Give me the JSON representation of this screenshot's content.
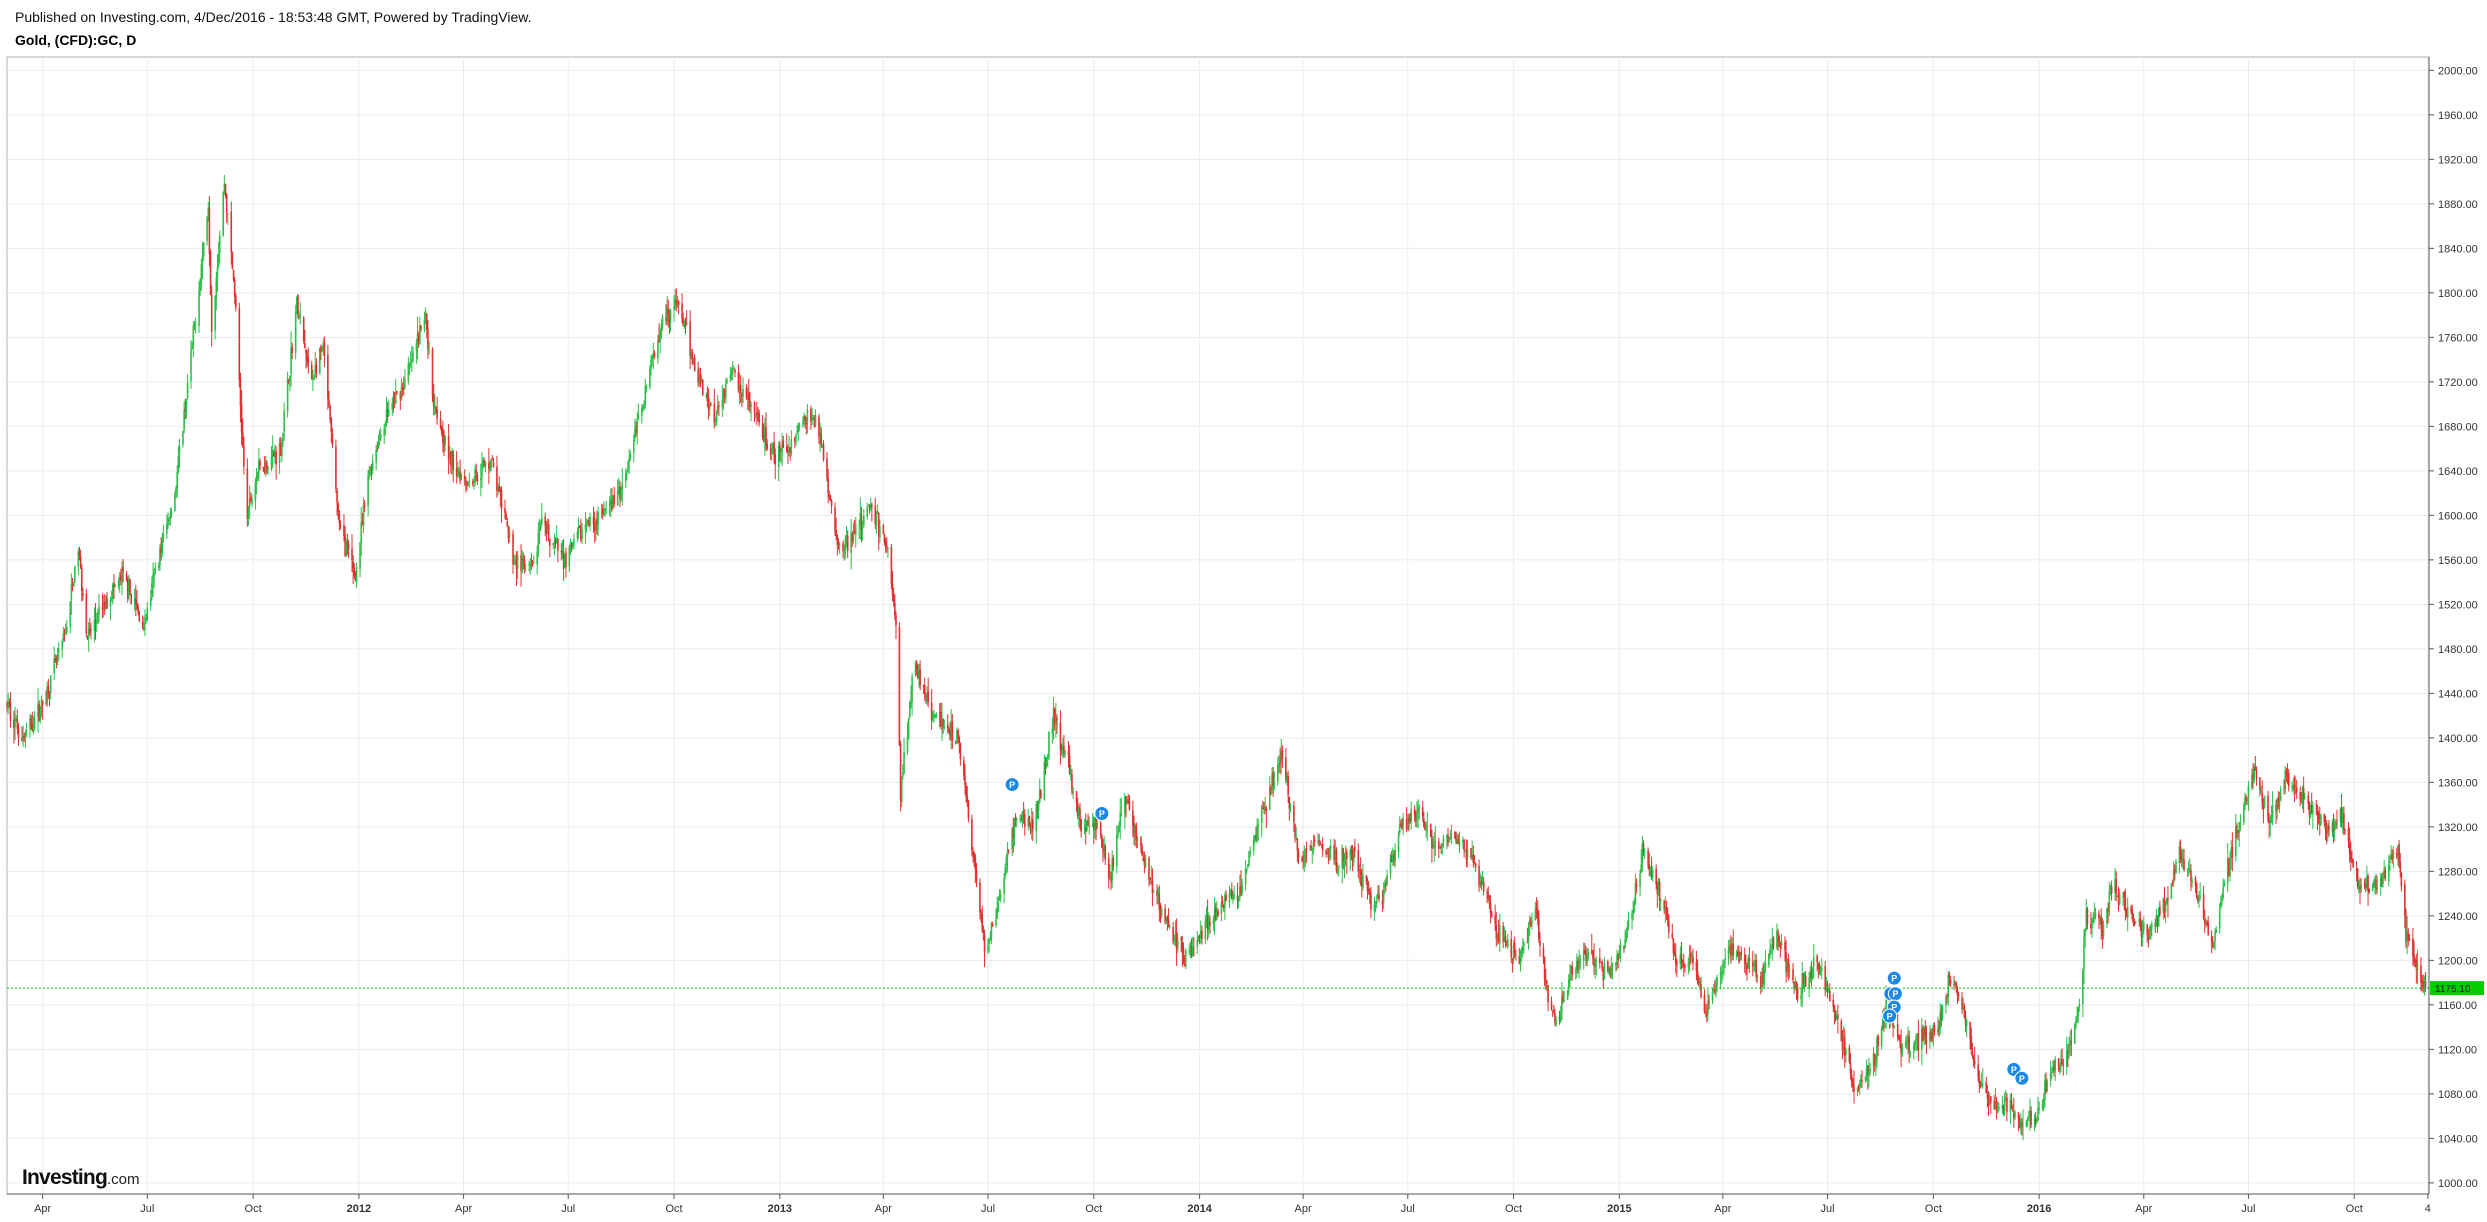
{
  "header": {
    "published": "Published on Investing.com, 4/Dec/2016 - 18:53:48 GMT, Powered by TradingView.",
    "symbol": "Gold, (CFD):GC, D"
  },
  "logo": {
    "main": "Investing",
    "suffix": ".com"
  },
  "colors": {
    "up": "#2ebf4a",
    "down": "#e03030",
    "grid": "#ececec",
    "current": "#00cc00",
    "marker": "#1e88e5"
  },
  "chart_data": {
    "type": "candlestick",
    "ylim": [
      990,
      2012
    ],
    "y_ticks": [
      "2000.00",
      "1960.00",
      "1920.00",
      "1880.00",
      "1840.00",
      "1800.00",
      "1760.00",
      "1720.00",
      "1680.00",
      "1640.00",
      "1600.00",
      "1560.00",
      "1520.00",
      "1480.00",
      "1440.00",
      "1400.00",
      "1360.00",
      "1320.00",
      "1280.00",
      "1240.00",
      "1200.00",
      "1160.00",
      "1120.00",
      "1080.00",
      "1040.00",
      "1000.00"
    ],
    "x_range": [
      "2011-03-01",
      "2016-12-05"
    ],
    "x_ticks": [
      {
        "label": "Apr",
        "date": "2011-04-01",
        "bold": false
      },
      {
        "label": "Jul",
        "date": "2011-07-01",
        "bold": false
      },
      {
        "label": "Oct",
        "date": "2011-10-01",
        "bold": false
      },
      {
        "label": "2012",
        "date": "2012-01-01",
        "bold": true
      },
      {
        "label": "Apr",
        "date": "2012-04-01",
        "bold": false
      },
      {
        "label": "Jul",
        "date": "2012-07-01",
        "bold": false
      },
      {
        "label": "Oct",
        "date": "2012-10-01",
        "bold": false
      },
      {
        "label": "2013",
        "date": "2013-01-01",
        "bold": true
      },
      {
        "label": "Apr",
        "date": "2013-04-01",
        "bold": false
      },
      {
        "label": "Jul",
        "date": "2013-07-01",
        "bold": false
      },
      {
        "label": "Oct",
        "date": "2013-10-01",
        "bold": false
      },
      {
        "label": "2014",
        "date": "2014-01-01",
        "bold": true
      },
      {
        "label": "Apr",
        "date": "2014-04-01",
        "bold": false
      },
      {
        "label": "Jul",
        "date": "2014-07-01",
        "bold": false
      },
      {
        "label": "Oct",
        "date": "2014-10-01",
        "bold": false
      },
      {
        "label": "2015",
        "date": "2015-01-01",
        "bold": true
      },
      {
        "label": "Apr",
        "date": "2015-04-01",
        "bold": false
      },
      {
        "label": "Jul",
        "date": "2015-07-01",
        "bold": false
      },
      {
        "label": "Oct",
        "date": "2015-10-01",
        "bold": false
      },
      {
        "label": "2016",
        "date": "2016-01-01",
        "bold": true
      },
      {
        "label": "Apr",
        "date": "2016-04-01",
        "bold": false
      },
      {
        "label": "Jul",
        "date": "2016-07-01",
        "bold": false
      },
      {
        "label": "Oct",
        "date": "2016-10-01",
        "bold": false
      },
      {
        "label": "4",
        "date": "2016-12-04",
        "bold": false
      }
    ],
    "current_price": 1175.1,
    "current_price_label": "1175.10",
    "price_path": [
      [
        "2011-03-01",
        1430
      ],
      [
        "2011-03-15",
        1400
      ],
      [
        "2011-04-01",
        1430
      ],
      [
        "2011-04-20",
        1490
      ],
      [
        "2011-05-02",
        1570
      ],
      [
        "2011-05-10",
        1490
      ],
      [
        "2011-05-30",
        1530
      ],
      [
        "2011-06-10",
        1545
      ],
      [
        "2011-06-28",
        1500
      ],
      [
        "2011-07-10",
        1560
      ],
      [
        "2011-07-25",
        1620
      ],
      [
        "2011-08-10",
        1760
      ],
      [
        "2011-08-23",
        1880
      ],
      [
        "2011-08-26",
        1770
      ],
      [
        "2011-09-06",
        1900
      ],
      [
        "2011-09-15",
        1800
      ],
      [
        "2011-09-23",
        1640
      ],
      [
        "2011-09-26",
        1600
      ],
      [
        "2011-10-05",
        1640
      ],
      [
        "2011-10-25",
        1660
      ],
      [
        "2011-11-08",
        1790
      ],
      [
        "2011-11-20",
        1720
      ],
      [
        "2011-12-01",
        1750
      ],
      [
        "2011-12-15",
        1590
      ],
      [
        "2011-12-29",
        1545
      ],
      [
        "2012-01-10",
        1640
      ],
      [
        "2012-01-25",
        1690
      ],
      [
        "2012-02-10",
        1720
      ],
      [
        "2012-02-28",
        1780
      ],
      [
        "2012-03-05",
        1710
      ],
      [
        "2012-03-20",
        1650
      ],
      [
        "2012-04-05",
        1630
      ],
      [
        "2012-04-25",
        1650
      ],
      [
        "2012-05-15",
        1560
      ],
      [
        "2012-05-30",
        1550
      ],
      [
        "2012-06-08",
        1590
      ],
      [
        "2012-06-28",
        1560
      ],
      [
        "2012-07-15",
        1590
      ],
      [
        "2012-07-31",
        1600
      ],
      [
        "2012-08-15",
        1620
      ],
      [
        "2012-09-01",
        1690
      ],
      [
        "2012-09-21",
        1780
      ],
      [
        "2012-10-05",
        1790
      ],
      [
        "2012-10-20",
        1730
      ],
      [
        "2012-11-05",
        1690
      ],
      [
        "2012-11-20",
        1730
      ],
      [
        "2012-12-05",
        1700
      ],
      [
        "2012-12-28",
        1650
      ],
      [
        "2013-01-10",
        1665
      ],
      [
        "2013-01-25",
        1690
      ],
      [
        "2013-02-05",
        1675
      ],
      [
        "2013-02-20",
        1570
      ],
      [
        "2013-03-05",
        1580
      ],
      [
        "2013-03-20",
        1610
      ],
      [
        "2013-04-05",
        1570
      ],
      [
        "2013-04-12",
        1500
      ],
      [
        "2013-04-16",
        1350
      ],
      [
        "2013-04-28",
        1470
      ],
      [
        "2013-05-15",
        1420
      ],
      [
        "2013-06-05",
        1400
      ],
      [
        "2013-06-20",
        1280
      ],
      [
        "2013-06-28",
        1210
      ],
      [
        "2013-07-10",
        1250
      ],
      [
        "2013-07-25",
        1330
      ],
      [
        "2013-08-10",
        1320
      ],
      [
        "2013-08-27",
        1420
      ],
      [
        "2013-09-10",
        1370
      ],
      [
        "2013-09-20",
        1320
      ],
      [
        "2013-10-05",
        1320
      ],
      [
        "2013-10-15",
        1270
      ],
      [
        "2013-10-28",
        1350
      ],
      [
        "2013-11-10",
        1300
      ],
      [
        "2013-11-30",
        1240
      ],
      [
        "2013-12-20",
        1200
      ],
      [
        "2014-01-05",
        1230
      ],
      [
        "2014-01-20",
        1250
      ],
      [
        "2014-02-05",
        1260
      ],
      [
        "2014-02-20",
        1320
      ],
      [
        "2014-03-14",
        1385
      ],
      [
        "2014-03-28",
        1290
      ],
      [
        "2014-04-15",
        1310
      ],
      [
        "2014-04-30",
        1290
      ],
      [
        "2014-05-15",
        1295
      ],
      [
        "2014-05-30",
        1250
      ],
      [
        "2014-06-10",
        1260
      ],
      [
        "2014-06-25",
        1320
      ],
      [
        "2014-07-10",
        1335
      ],
      [
        "2014-07-25",
        1300
      ],
      [
        "2014-08-10",
        1310
      ],
      [
        "2014-08-29",
        1285
      ],
      [
        "2014-09-15",
        1230
      ],
      [
        "2014-10-05",
        1200
      ],
      [
        "2014-10-20",
        1245
      ],
      [
        "2014-10-31",
        1170
      ],
      [
        "2014-11-07",
        1140
      ],
      [
        "2014-11-20",
        1190
      ],
      [
        "2014-12-05",
        1205
      ],
      [
        "2014-12-20",
        1190
      ],
      [
        "2015-01-05",
        1210
      ],
      [
        "2015-01-22",
        1300
      ],
      [
        "2015-02-05",
        1260
      ],
      [
        "2015-02-20",
        1200
      ],
      [
        "2015-03-05",
        1200
      ],
      [
        "2015-03-17",
        1150
      ],
      [
        "2015-04-05",
        1210
      ],
      [
        "2015-04-20",
        1200
      ],
      [
        "2015-05-05",
        1185
      ],
      [
        "2015-05-18",
        1225
      ],
      [
        "2015-06-05",
        1170
      ],
      [
        "2015-06-20",
        1200
      ],
      [
        "2015-07-05",
        1165
      ],
      [
        "2015-07-20",
        1100
      ],
      [
        "2015-07-24",
        1080
      ],
      [
        "2015-08-10",
        1110
      ],
      [
        "2015-08-21",
        1160
      ],
      [
        "2015-09-05",
        1120
      ],
      [
        "2015-09-20",
        1130
      ],
      [
        "2015-10-05",
        1140
      ],
      [
        "2015-10-15",
        1185
      ],
      [
        "2015-10-28",
        1150
      ],
      [
        "2015-11-10",
        1090
      ],
      [
        "2015-11-25",
        1065
      ],
      [
        "2015-12-05",
        1075
      ],
      [
        "2015-12-17",
        1050
      ],
      [
        "2015-12-30",
        1060
      ],
      [
        "2016-01-10",
        1100
      ],
      [
        "2016-01-25",
        1110
      ],
      [
        "2016-02-05",
        1160
      ],
      [
        "2016-02-11",
        1240
      ],
      [
        "2016-02-25",
        1230
      ],
      [
        "2016-03-05",
        1270
      ],
      [
        "2016-03-20",
        1240
      ],
      [
        "2016-04-05",
        1225
      ],
      [
        "2016-04-20",
        1250
      ],
      [
        "2016-05-02",
        1300
      ],
      [
        "2016-05-20",
        1250
      ],
      [
        "2016-05-31",
        1210
      ],
      [
        "2016-06-10",
        1270
      ],
      [
        "2016-06-24",
        1330
      ],
      [
        "2016-07-06",
        1370
      ],
      [
        "2016-07-20",
        1325
      ],
      [
        "2016-08-02",
        1365
      ],
      [
        "2016-08-20",
        1345
      ],
      [
        "2016-09-05",
        1320
      ],
      [
        "2016-09-20",
        1330
      ],
      [
        "2016-10-04",
        1270
      ],
      [
        "2016-10-20",
        1265
      ],
      [
        "2016-11-08",
        1300
      ],
      [
        "2016-11-15",
        1225
      ],
      [
        "2016-11-25",
        1190
      ],
      [
        "2016-12-02",
        1175
      ]
    ],
    "markers": [
      {
        "label": "P",
        "date": "2013-07-22",
        "price": 1358
      },
      {
        "label": "P",
        "date": "2013-10-08",
        "price": 1332
      },
      {
        "label": "P",
        "date": "2015-08-28",
        "price": 1184
      },
      {
        "label": "P",
        "date": "2015-08-25",
        "price": 1170
      },
      {
        "label": "P",
        "date": "2015-08-29",
        "price": 1170
      },
      {
        "label": "P",
        "date": "2015-08-28",
        "price": 1158
      },
      {
        "label": "P",
        "date": "2015-08-24",
        "price": 1150
      },
      {
        "label": "P",
        "date": "2015-12-10",
        "price": 1102
      },
      {
        "label": "P",
        "date": "2015-12-17",
        "price": 1094
      }
    ]
  }
}
